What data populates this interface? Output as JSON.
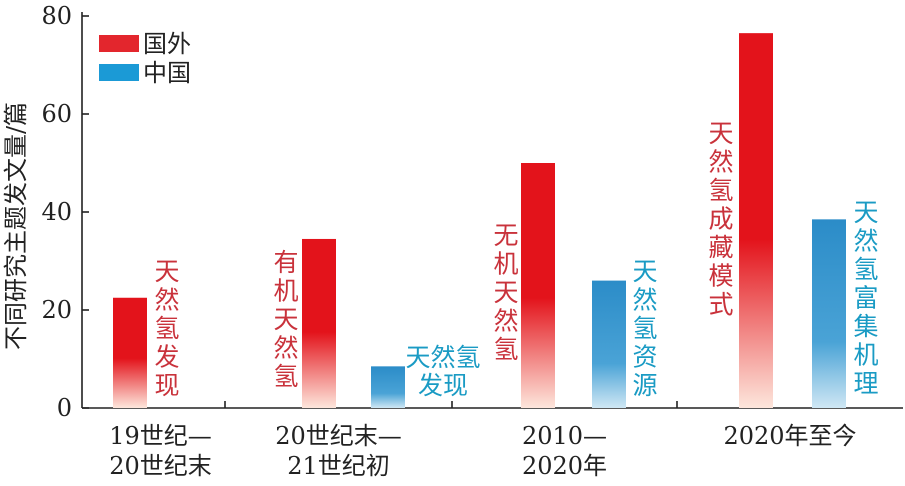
{
  "chart_data": {
    "type": "bar",
    "ylabel": "不同研究主题发文量/篇",
    "ylim": [
      0,
      80
    ],
    "yticks": [
      0,
      20,
      40,
      60,
      80
    ],
    "categories": [
      [
        "19世纪—",
        "20世纪末"
      ],
      [
        "20世纪末—",
        "21世纪初"
      ],
      [
        "2010—",
        "2020年"
      ],
      [
        "2020年至今"
      ]
    ],
    "series": [
      {
        "name": "国外",
        "color": "#e3131b",
        "values": [
          22.5,
          34.5,
          50,
          76.5
        ]
      },
      {
        "name": "中国",
        "color": "#2b8cc8",
        "values": [
          0,
          8.5,
          26,
          38.5
        ]
      }
    ],
    "annotations": {
      "国外": [
        [
          "天",
          "然",
          "氢",
          "发",
          "现"
        ],
        [
          "有",
          "机",
          "天",
          "然",
          "氢"
        ],
        [
          "无",
          "机",
          "天",
          "然",
          "氢"
        ],
        [
          "天",
          "然",
          "氢",
          "成",
          "藏",
          "模",
          "式"
        ]
      ],
      "中国": [
        null,
        [
          "天然氢",
          "发现"
        ],
        [
          "天",
          "然",
          "氢",
          "资",
          "源"
        ],
        [
          "天",
          "然",
          "氢",
          "富",
          "集",
          "机",
          "理"
        ]
      ]
    },
    "annotation_colors": {
      "国外": "#c9323b",
      "中国": "#1a9bc4"
    },
    "legend_position": "top-left",
    "grid": false
  }
}
